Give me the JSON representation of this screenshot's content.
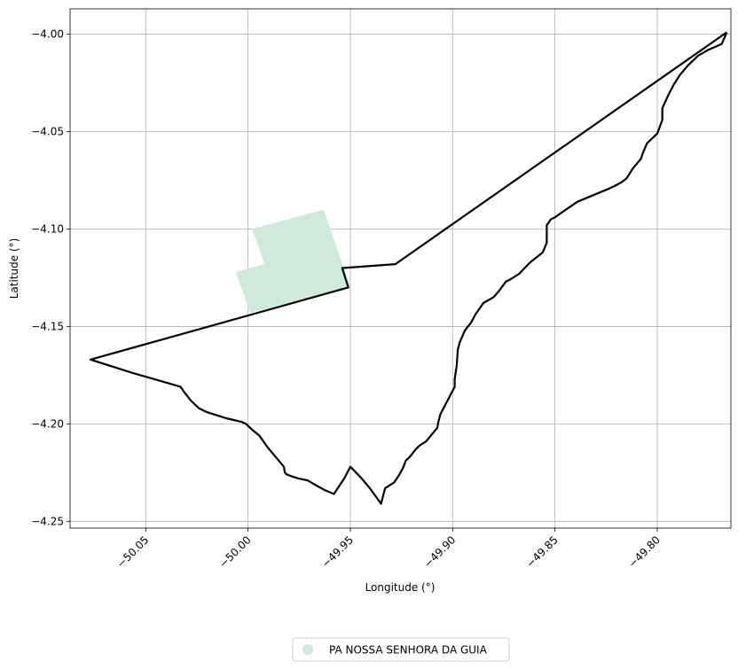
{
  "chart_data": {
    "type": "map",
    "xlabel": "Longitude (°)",
    "ylabel": "Latitude (°)",
    "xlim": [
      -50.087,
      -49.764
    ],
    "ylim": [
      -4.2535,
      -3.987
    ],
    "grid": true,
    "x_ticks": [
      {
        "value": -50.05,
        "label": "−50.05"
      },
      {
        "value": -50.0,
        "label": "−50.00"
      },
      {
        "value": -49.95,
        "label": "−49.95"
      },
      {
        "value": -49.9,
        "label": "−49.90"
      },
      {
        "value": -49.85,
        "label": "−49.85"
      },
      {
        "value": -49.8,
        "label": "−49.80"
      }
    ],
    "y_ticks": [
      {
        "value": -4.0,
        "label": "−4.00"
      },
      {
        "value": -4.05,
        "label": "−4.05"
      },
      {
        "value": -4.1,
        "label": "−4.10"
      },
      {
        "value": -4.15,
        "label": "−4.15"
      },
      {
        "value": -4.2,
        "label": "−4.20"
      },
      {
        "value": -4.25,
        "label": "−4.25"
      }
    ],
    "colors": {
      "area": "#cfeadd",
      "boundary": "#000000",
      "grid": "#b0b0b0"
    },
    "legend": {
      "placement": "bottom-center",
      "entries": [
        {
          "label": "PA NOSSA SENHORA DA GUIA",
          "color": "#cfeadd",
          "marker": "circle"
        }
      ]
    },
    "areas": [
      {
        "name": "PA NOSSA SENHORA DA GUIA",
        "coords": [
          [
            -49.998,
            -4.1
          ],
          [
            -49.963,
            -4.09
          ],
          [
            -49.95,
            -4.13
          ],
          [
            -49.999,
            -4.143
          ],
          [
            -50.006,
            -4.122
          ],
          [
            -49.992,
            -4.118
          ]
        ]
      }
    ],
    "boundary": {
      "coords": [
        [
          -49.766,
          -3.999
        ],
        [
          -49.7685,
          -4.005
        ],
        [
          -49.775,
          -4.008
        ],
        [
          -49.78,
          -4.011
        ],
        [
          -49.785,
          -4.016
        ],
        [
          -49.789,
          -4.021
        ],
        [
          -49.792,
          -4.026
        ],
        [
          -49.7945,
          -4.031
        ],
        [
          -49.7975,
          -4.038
        ],
        [
          -49.7975,
          -4.044
        ],
        [
          -49.8,
          -4.051
        ],
        [
          -49.805,
          -4.056
        ],
        [
          -49.807,
          -4.061
        ],
        [
          -49.808,
          -4.064
        ],
        [
          -49.812,
          -4.069
        ],
        [
          -49.815,
          -4.074
        ],
        [
          -49.8175,
          -4.076
        ],
        [
          -49.821,
          -4.078
        ],
        [
          -49.823,
          -4.079
        ],
        [
          -49.839,
          -4.086
        ],
        [
          -49.846,
          -4.091
        ],
        [
          -49.85,
          -4.094
        ],
        [
          -49.852,
          -4.095
        ],
        [
          -49.854,
          -4.098
        ],
        [
          -49.854,
          -4.107
        ],
        [
          -49.856,
          -4.112
        ],
        [
          -49.862,
          -4.117
        ],
        [
          -49.863,
          -4.118
        ],
        [
          -49.8675,
          -4.123
        ],
        [
          -49.872,
          -4.126
        ],
        [
          -49.874,
          -4.127
        ],
        [
          -49.8775,
          -4.132
        ],
        [
          -49.88,
          -4.135
        ],
        [
          -49.885,
          -4.138
        ],
        [
          -49.889,
          -4.144
        ],
        [
          -49.891,
          -4.148
        ],
        [
          -49.894,
          -4.152
        ],
        [
          -49.8965,
          -4.158
        ],
        [
          -49.897,
          -4.16
        ],
        [
          -49.8975,
          -4.162
        ],
        [
          -49.898,
          -4.17
        ],
        [
          -49.899,
          -4.177
        ],
        [
          -49.899,
          -4.181
        ],
        [
          -49.904,
          -4.191
        ],
        [
          -49.906,
          -4.195
        ],
        [
          -49.907,
          -4.199
        ],
        [
          -49.9075,
          -4.202
        ],
        [
          -49.913,
          -4.209
        ],
        [
          -49.916,
          -4.211
        ],
        [
          -49.918,
          -4.213
        ],
        [
          -49.921,
          -4.217
        ],
        [
          -49.923,
          -4.219
        ],
        [
          -49.924,
          -4.222
        ],
        [
          -49.926,
          -4.226
        ],
        [
          -49.9285,
          -4.23
        ],
        [
          -49.933,
          -4.233
        ],
        [
          -49.934,
          -4.237
        ],
        [
          -49.935,
          -4.241
        ],
        [
          -49.9405,
          -4.233
        ],
        [
          -49.9445,
          -4.228
        ],
        [
          -49.95,
          -4.222
        ],
        [
          -49.953,
          -4.228
        ],
        [
          -49.958,
          -4.236
        ],
        [
          -49.9625,
          -4.234
        ],
        [
          -49.966,
          -4.232
        ],
        [
          -49.971,
          -4.229
        ],
        [
          -49.9755,
          -4.228
        ],
        [
          -49.9785,
          -4.227
        ],
        [
          -49.981,
          -4.226
        ],
        [
          -49.982,
          -4.225
        ],
        [
          -49.9825,
          -4.222
        ],
        [
          -49.9865,
          -4.217
        ],
        [
          -49.9905,
          -4.212
        ],
        [
          -49.9945,
          -4.206
        ],
        [
          -49.998,
          -4.203
        ],
        [
          -50.001,
          -4.2
        ],
        [
          -50.003,
          -4.199
        ],
        [
          -50.007,
          -4.198
        ],
        [
          -50.011,
          -4.197
        ],
        [
          -50.014,
          -4.196
        ],
        [
          -50.02,
          -4.194
        ],
        [
          -50.024,
          -4.192
        ],
        [
          -50.028,
          -4.188
        ],
        [
          -50.031,
          -4.184
        ],
        [
          -50.033,
          -4.181
        ],
        [
          -50.036,
          -4.18
        ],
        [
          -50.046,
          -4.177
        ],
        [
          -50.056,
          -4.174
        ],
        [
          -50.077,
          -4.167
        ],
        [
          -49.951,
          -4.13
        ],
        [
          -49.954,
          -4.12
        ],
        [
          -49.928,
          -4.118
        ],
        [
          -49.766,
          -3.999
        ]
      ]
    }
  }
}
